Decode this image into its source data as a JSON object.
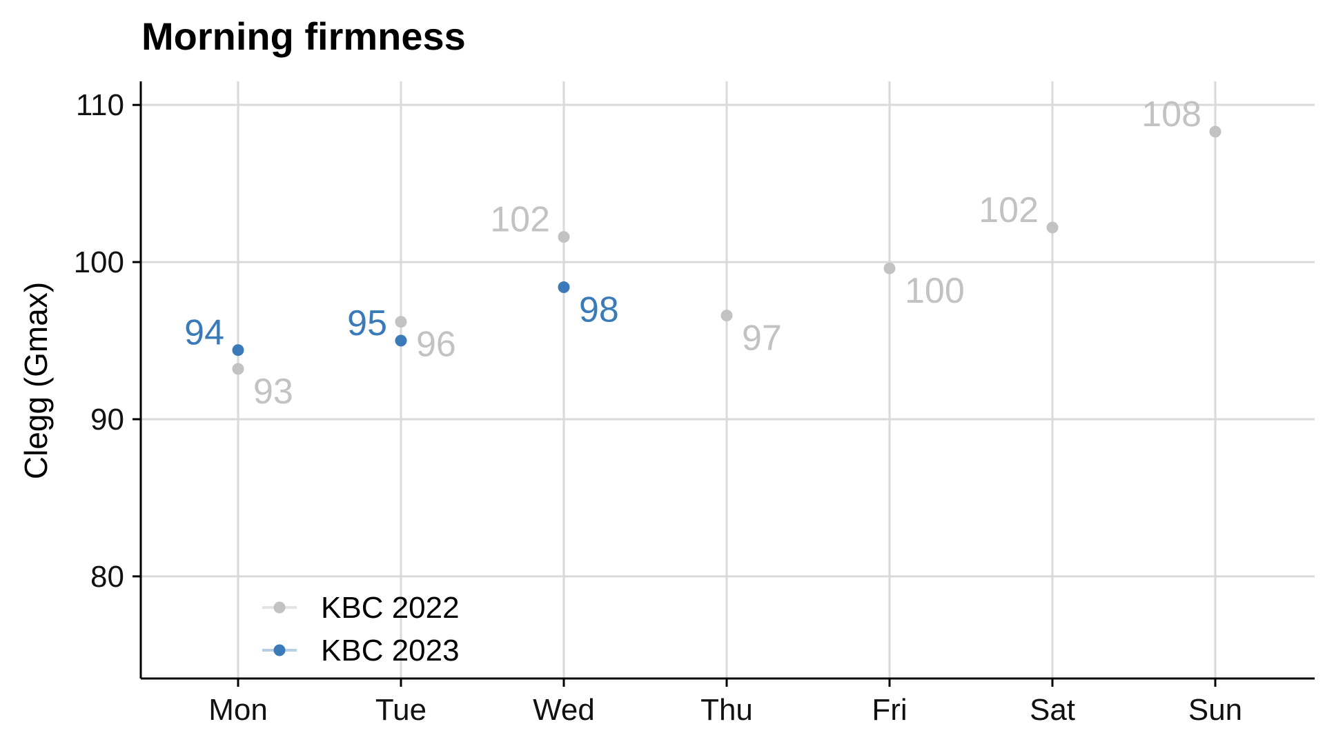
{
  "chart_data": {
    "type": "scatter",
    "title": "Morning firmness",
    "xlabel": "",
    "ylabel": "Clegg (Gmax)",
    "categories": [
      "Mon",
      "Tue",
      "Wed",
      "Thu",
      "Fri",
      "Sat",
      "Sun"
    ],
    "ylim": [
      73.5,
      111.5
    ],
    "yticks": [
      80,
      90,
      100,
      110
    ],
    "grid": true,
    "legend_position": "bottom-left",
    "series": [
      {
        "name": "KBC 2022",
        "color": "#c2c2c2",
        "legend_line_color": "#e3e3e3",
        "values": [
          93.2,
          96.2,
          101.6,
          96.6,
          99.6,
          102.2,
          108.3
        ],
        "labels": [
          "93",
          "96",
          "102",
          "97",
          "100",
          "102",
          "108"
        ],
        "label_sides": [
          "right",
          "right",
          "left",
          "right",
          "right",
          "left",
          "left"
        ]
      },
      {
        "name": "KBC 2023",
        "color": "#3a7ab8",
        "legend_line_color": "#b6cfe6",
        "values": [
          94.4,
          95.0,
          98.4,
          null,
          null,
          null,
          null
        ],
        "labels": [
          "94",
          "95",
          "98",
          "",
          "",
          "",
          ""
        ],
        "label_sides": [
          "left",
          "left",
          "right",
          "",
          "",
          "",
          ""
        ]
      }
    ]
  }
}
